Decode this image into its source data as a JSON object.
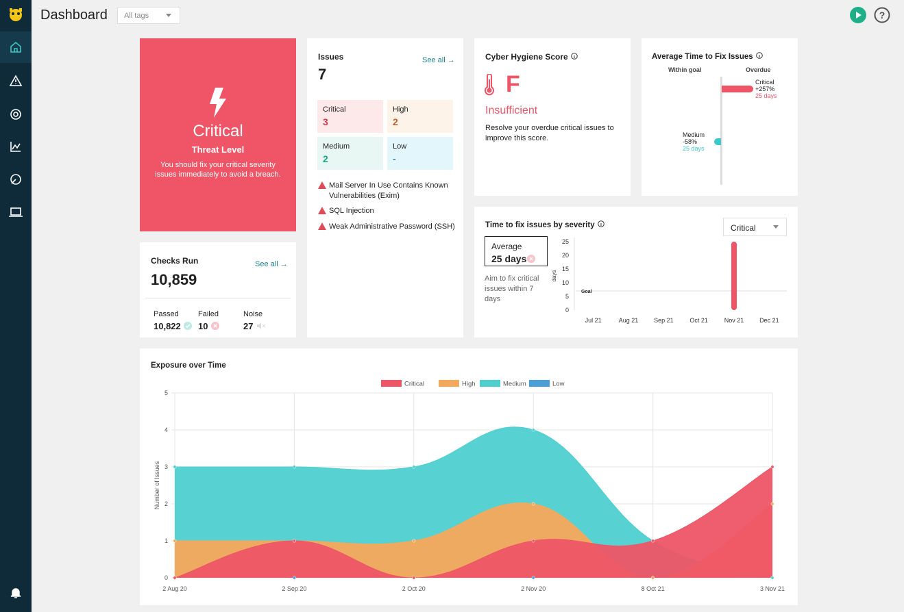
{
  "header": {
    "title": "Dashboard",
    "tag_filter": "All tags"
  },
  "threat": {
    "level": "Critical",
    "label": "Threat Level",
    "message": "You should fix your critical severity issues immediately to avoid a breach."
  },
  "issues": {
    "title": "Issues",
    "see_all": "See all",
    "count": 7,
    "severities": [
      {
        "name": "Critical",
        "value": 3
      },
      {
        "name": "High",
        "value": 2
      },
      {
        "name": "Medium",
        "value": 2
      },
      {
        "name": "Low",
        "value": "-"
      }
    ],
    "list": [
      "Mail Server In Use Contains Known Vulnerabilities (Exim)",
      "SQL Injection",
      "Weak Administrative Password (SSH)"
    ]
  },
  "checks": {
    "title": "Checks Run",
    "see_all": "See all",
    "total": "10,859",
    "items": [
      {
        "name": "Passed",
        "value": "10,822"
      },
      {
        "name": "Failed",
        "value": "10"
      },
      {
        "name": "Noise",
        "value": "27"
      }
    ]
  },
  "hygiene": {
    "title": "Cyber Hygiene Score",
    "grade": "F",
    "status": "Insufficient",
    "message": "Resolve your overdue critical issues to improve this score."
  },
  "avg_time": {
    "title": "Average Time to Fix Issues",
    "within_goal": "Within goal",
    "overdue": "Overdue",
    "items": [
      {
        "name": "Critical",
        "change": "+257%",
        "days": "25 days"
      },
      {
        "name": "Medium",
        "change": "-58%",
        "days": "25 days"
      }
    ]
  },
  "chart_data": [
    {
      "type": "bar",
      "title": "Time to fix issues by severity",
      "selector": "Critical",
      "average_label": "Average",
      "average_value": "25 days",
      "hint": "Aim to fix critical issues within 7 days",
      "ylabel": "days",
      "categories": [
        "Jul 21",
        "Aug 21",
        "Sep 21",
        "Oct 21",
        "Nov 21",
        "Dec 21"
      ],
      "values": [
        null,
        null,
        null,
        null,
        25,
        null
      ],
      "color": "#ef5566",
      "ylim": [
        0,
        25
      ],
      "yticks": [
        0,
        5,
        10,
        15,
        20,
        25
      ],
      "goal": {
        "label": "Goal",
        "value": 7
      }
    },
    {
      "type": "area",
      "title": "Exposure over Time",
      "ylabel": "Number of Issues",
      "categories": [
        "2 Aug 20",
        "2 Sep 20",
        "2 Oct 20",
        "2 Nov 20",
        "8 Oct 21",
        "3 Nov 21"
      ],
      "series": [
        {
          "name": "Critical",
          "color": "#ee5566",
          "values": [
            0,
            1,
            0,
            1,
            1,
            3
          ]
        },
        {
          "name": "High",
          "color": "#f6a85a",
          "values": [
            1,
            1,
            1,
            2,
            0,
            2
          ]
        },
        {
          "name": "Medium",
          "color": "#4ecfcf",
          "values": [
            3,
            3,
            3,
            4,
            1,
            0
          ]
        },
        {
          "name": "Low",
          "color": "#4a9fd8",
          "values": [
            0,
            0,
            0,
            0,
            0,
            0
          ]
        }
      ],
      "ylim": [
        0,
        5
      ],
      "yticks": [
        0,
        1,
        2,
        3,
        4,
        5
      ],
      "grid": true,
      "legend": "top"
    }
  ]
}
